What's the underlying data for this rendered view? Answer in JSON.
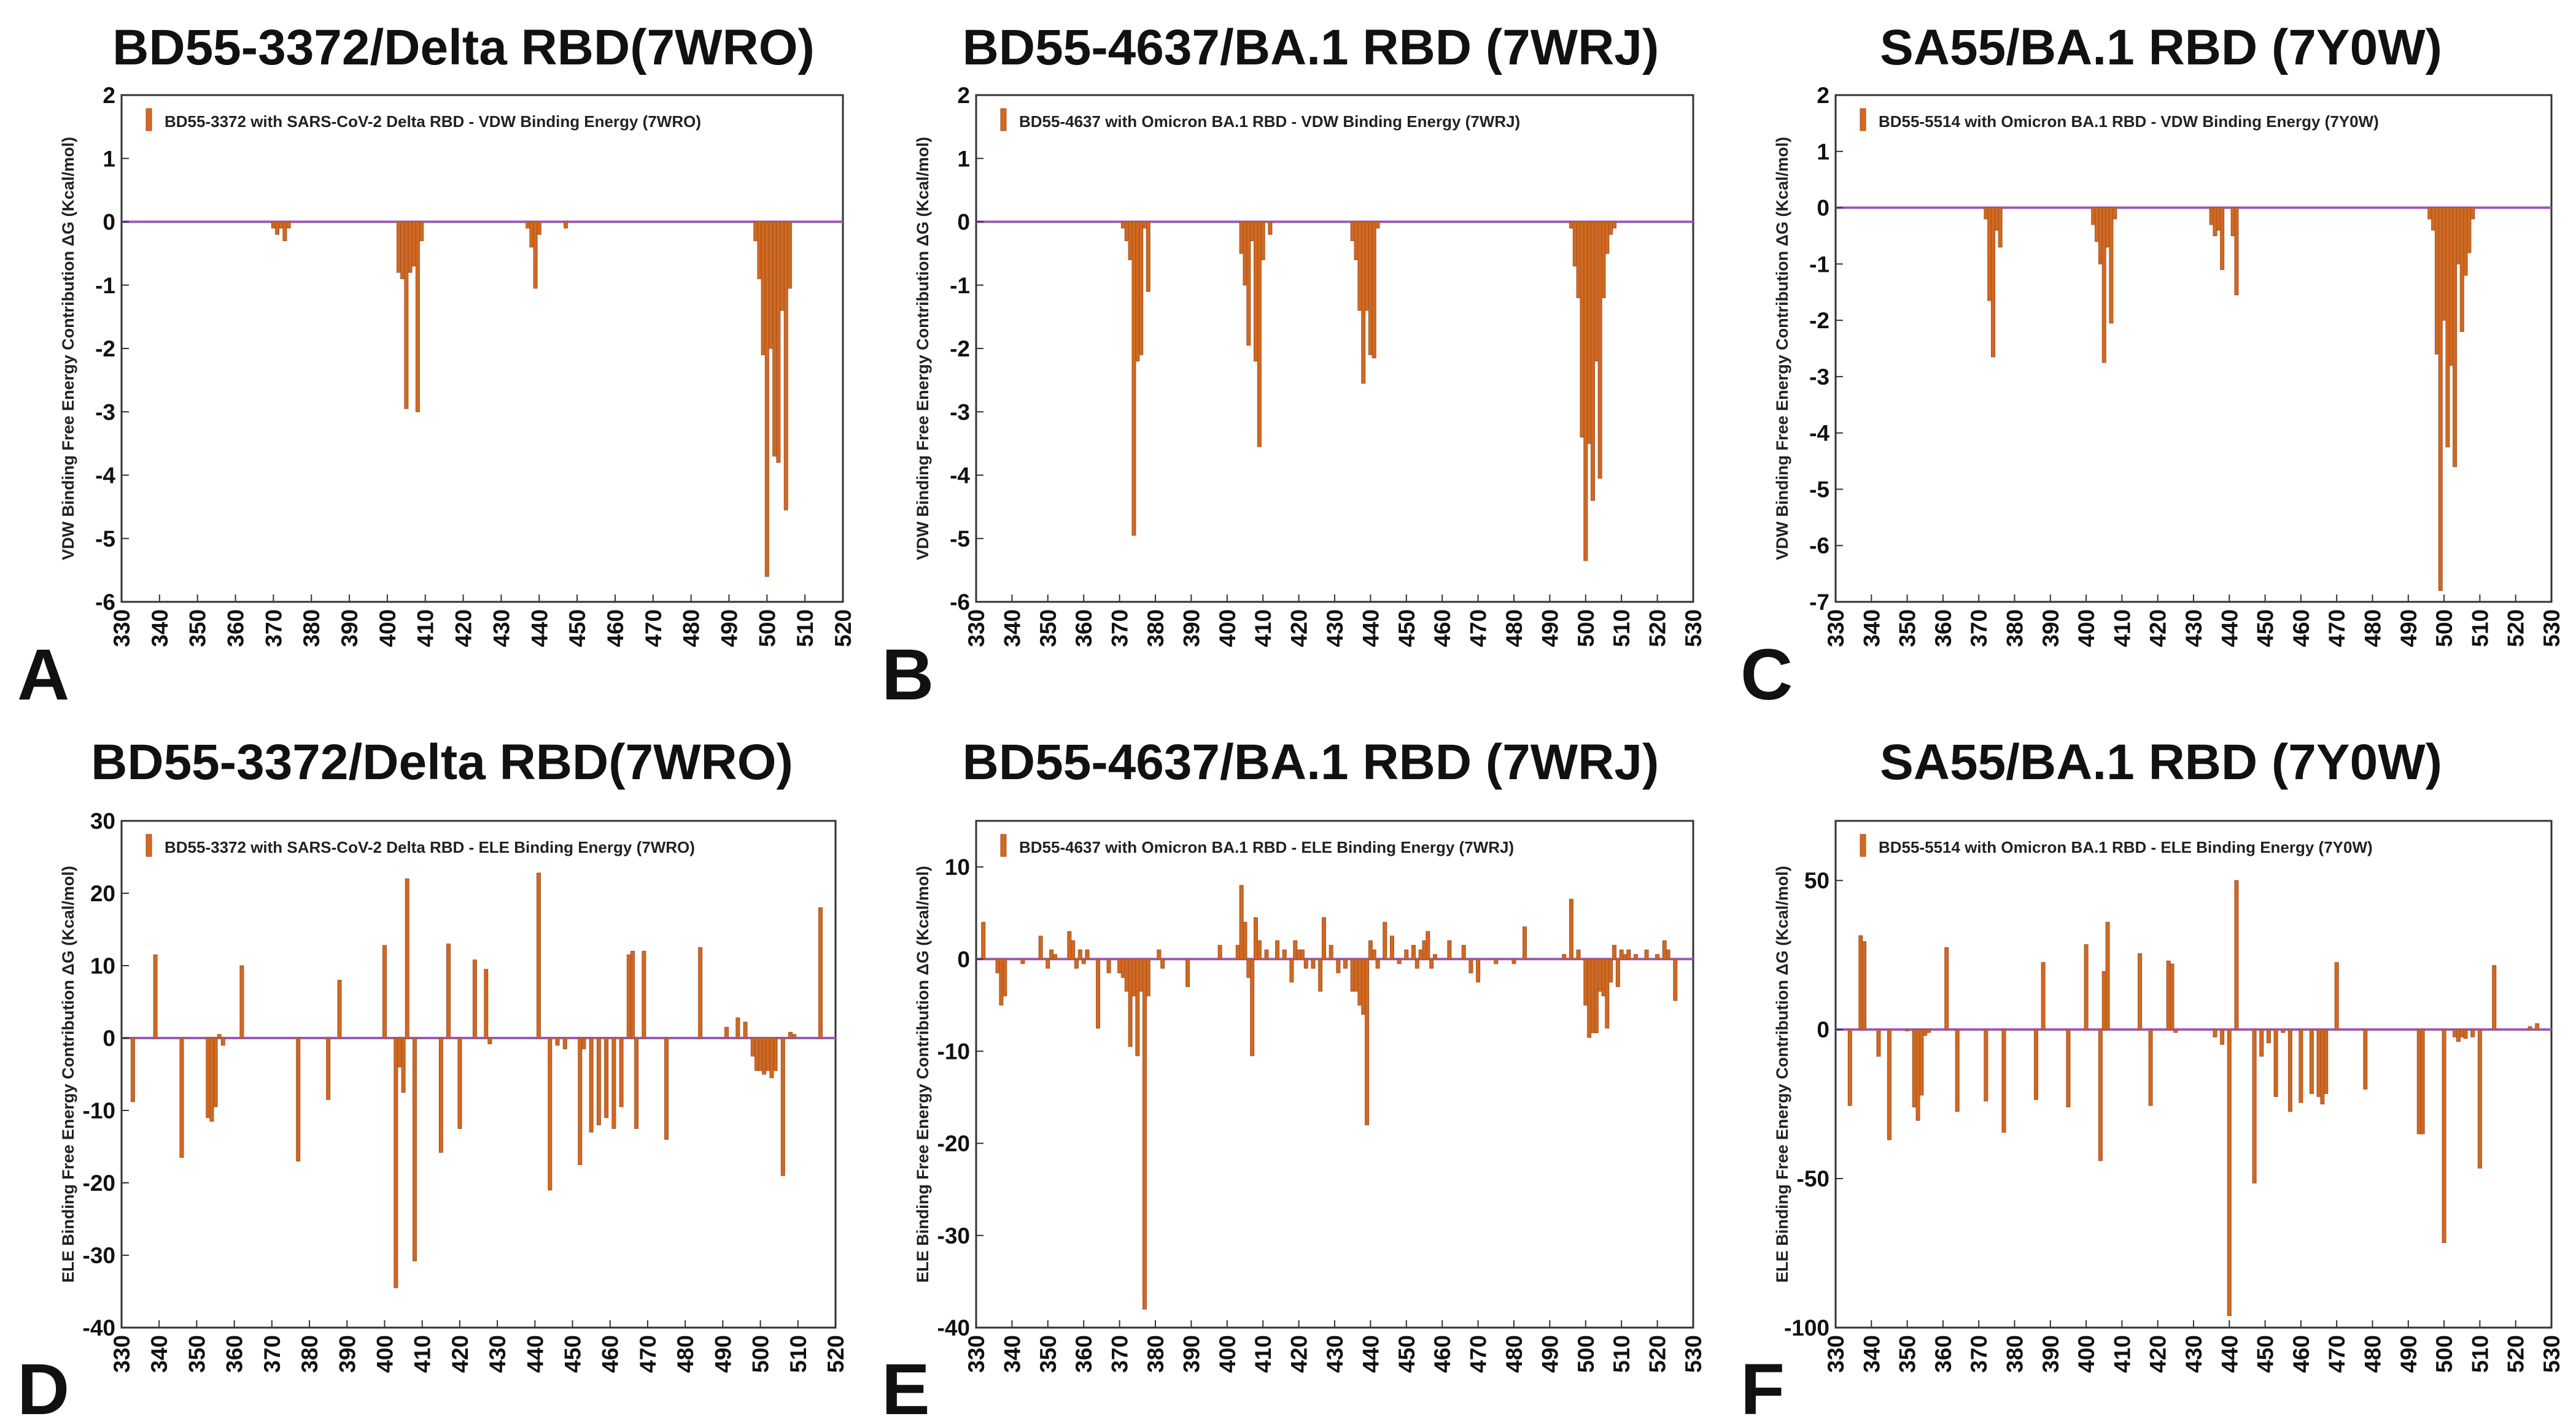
{
  "colors": {
    "bar": "#d2691e",
    "bar_edge": "#a0522d",
    "zero_line": "#9b59b6",
    "axis": "#333333"
  },
  "chart_data": [
    {
      "panel": "A",
      "type": "bar",
      "title": "BD55-3372/Delta RBD(7WRO)",
      "legend": "BD55-3372 with SARS-CoV-2 Delta RBD -  VDW Binding Energy (7WRO)",
      "ylabel": "VDW Binding Free Energy Contribution    ΔG (Kcal/mol)",
      "xlim": [
        330,
        520
      ],
      "xticks": [
        330,
        340,
        350,
        360,
        370,
        380,
        390,
        400,
        410,
        420,
        430,
        440,
        450,
        460,
        470,
        480,
        490,
        500,
        510,
        520
      ],
      "ylim": [
        -6,
        2
      ],
      "yticks": [
        -6,
        -5,
        -4,
        -3,
        -2,
        -1,
        0,
        1,
        2
      ],
      "x": [
        370,
        371,
        372,
        373,
        374,
        403,
        404,
        405,
        406,
        407,
        408,
        409,
        437,
        438,
        439,
        440,
        447,
        497,
        498,
        499,
        500,
        501,
        502,
        503,
        504,
        505,
        506
      ],
      "values": [
        -0.1,
        -0.2,
        -0.1,
        -0.3,
        -0.1,
        -0.8,
        -0.9,
        -2.95,
        -0.8,
        -0.7,
        -3.0,
        -0.3,
        -0.1,
        -0.4,
        -1.05,
        -0.2,
        -0.1,
        -0.3,
        -0.9,
        -2.1,
        -5.6,
        -2.0,
        -3.7,
        -3.8,
        -1.4,
        -4.55,
        -1.05
      ]
    },
    {
      "panel": "B",
      "type": "bar",
      "title": "BD55-4637/BA.1 RBD  (7WRJ)",
      "legend": "BD55-4637 with Omicron BA.1 RBD -  VDW Binding Energy (7WRJ)",
      "ylabel": "VDW Binding Free Energy Contribution    ΔG (Kcal/mol)",
      "xlim": [
        330,
        530
      ],
      "xticks": [
        330,
        340,
        350,
        360,
        370,
        380,
        390,
        400,
        410,
        420,
        430,
        440,
        450,
        460,
        470,
        480,
        490,
        500,
        510,
        520,
        530
      ],
      "ylim": [
        -6,
        2
      ],
      "yticks": [
        -6,
        -5,
        -4,
        -3,
        -2,
        -1,
        0,
        1,
        2
      ],
      "x": [
        371,
        372,
        373,
        374,
        375,
        376,
        377,
        378,
        404,
        405,
        406,
        407,
        408,
        409,
        410,
        412,
        435,
        436,
        437,
        438,
        439,
        440,
        441,
        442,
        496,
        497,
        498,
        499,
        500,
        501,
        502,
        503,
        504,
        505,
        506,
        507,
        508
      ],
      "values": [
        -0.1,
        -0.3,
        -0.6,
        -4.95,
        -2.2,
        -2.1,
        -0.1,
        -1.1,
        -0.5,
        -1.0,
        -1.95,
        -0.3,
        -2.2,
        -3.55,
        -0.6,
        -0.2,
        -0.3,
        -0.6,
        -1.4,
        -2.55,
        -1.4,
        -2.1,
        -2.15,
        -0.1,
        -0.1,
        -0.7,
        -1.2,
        -3.4,
        -5.35,
        -3.5,
        -4.4,
        -2.2,
        -4.05,
        -1.2,
        -0.5,
        -0.2,
        -0.1
      ]
    },
    {
      "panel": "C",
      "type": "bar",
      "title": "SA55/BA.1 RBD (7Y0W)",
      "legend": "BD55-5514 with Omicron BA.1 RBD -  VDW Binding Energy (7Y0W)",
      "ylabel": "VDW Binding Free Energy Contribution    ΔG (Kcal/mol)",
      "xlim": [
        330,
        530
      ],
      "xticks": [
        330,
        340,
        350,
        360,
        370,
        380,
        390,
        400,
        410,
        420,
        430,
        440,
        450,
        460,
        470,
        480,
        490,
        500,
        510,
        520,
        530
      ],
      "ylim": [
        -7,
        2
      ],
      "yticks": [
        -7,
        -6,
        -5,
        -4,
        -3,
        -2,
        -1,
        0,
        1,
        2
      ],
      "x": [
        372,
        373,
        374,
        375,
        376,
        402,
        403,
        404,
        405,
        406,
        407,
        408,
        435,
        436,
        437,
        438,
        441,
        442,
        496,
        497,
        498,
        499,
        500,
        501,
        502,
        503,
        504,
        505,
        506,
        507,
        508
      ],
      "values": [
        -0.2,
        -1.65,
        -2.65,
        -0.4,
        -0.7,
        -0.3,
        -0.6,
        -1.0,
        -2.75,
        -0.7,
        -2.05,
        -0.2,
        -0.3,
        -0.5,
        -0.4,
        -1.1,
        -0.5,
        -1.55,
        -0.2,
        -0.4,
        -2.6,
        -6.8,
        -2.0,
        -4.25,
        -2.8,
        -4.6,
        -1.0,
        -2.2,
        -1.2,
        -0.8,
        -0.2
      ]
    },
    {
      "panel": "D",
      "type": "bar",
      "title": "BD55-3372/Delta RBD(7WRO)",
      "legend": "BD55-3372 with SARS-CoV-2 Delta RBD -  ELE Binding Energy (7WRO)",
      "ylabel": "ELE Binding Free Energy Contribution    ΔG (Kcal/mol)",
      "xlim": [
        330,
        520
      ],
      "xticks": [
        330,
        340,
        350,
        360,
        370,
        380,
        390,
        400,
        410,
        420,
        430,
        440,
        450,
        460,
        470,
        480,
        490,
        500,
        510,
        520
      ],
      "ylim": [
        -40,
        30
      ],
      "yticks": [
        -40,
        -30,
        -20,
        -10,
        0,
        10,
        20,
        30
      ],
      "x": [
        333,
        339,
        346,
        353,
        354,
        355,
        356,
        357,
        362,
        377,
        385,
        388,
        400,
        403,
        404,
        405,
        406,
        408,
        415,
        417,
        420,
        424,
        427,
        428,
        441,
        444,
        446,
        448,
        452,
        453,
        455,
        457,
        459,
        461,
        463,
        465,
        466,
        467,
        469,
        475,
        484,
        491,
        494,
        496,
        498,
        499,
        500,
        501,
        502,
        503,
        504,
        506,
        508,
        509,
        516
      ],
      "values": [
        -8.8,
        11.5,
        -16.5,
        -11.0,
        -11.5,
        -9.5,
        0.5,
        -1.0,
        10.0,
        -17.0,
        -8.5,
        8.0,
        12.8,
        -34.5,
        -4.0,
        -7.5,
        22.0,
        -30.8,
        -15.8,
        13.0,
        -12.5,
        10.8,
        9.5,
        -0.8,
        22.8,
        -21.0,
        -1.0,
        -1.5,
        -17.5,
        -1.5,
        -13.0,
        -12.0,
        -11.0,
        -12.5,
        -9.5,
        11.5,
        12.0,
        -12.5,
        12.0,
        -14.0,
        12.5,
        1.5,
        2.8,
        2.2,
        -2.5,
        -4.5,
        -4.5,
        -5.0,
        -4.5,
        -5.5,
        -4.5,
        -19.0,
        0.8,
        0.5,
        18.0
      ]
    },
    {
      "panel": "E",
      "type": "bar",
      "title": "BD55-4637/BA.1 RBD  (7WRJ)",
      "legend": "BD55-4637 with Omicron BA.1 RBD -  ELE Binding Energy (7WRJ)",
      "ylabel": "ELE Binding Free Energy Contribution    ΔG (Kcal/mol)",
      "xlim": [
        330,
        530
      ],
      "xticks": [
        330,
        340,
        350,
        360,
        370,
        380,
        390,
        400,
        410,
        420,
        430,
        440,
        450,
        460,
        470,
        480,
        490,
        500,
        510,
        520,
        530
      ],
      "ylim": [
        -40,
        15
      ],
      "yticks": [
        -40,
        -30,
        -20,
        -10,
        0,
        10
      ],
      "x": [
        332,
        336,
        337,
        338,
        343,
        348,
        350,
        351,
        352,
        356,
        357,
        358,
        359,
        360,
        361,
        364,
        367,
        370,
        371,
        372,
        373,
        374,
        375,
        376,
        377,
        378,
        381,
        382,
        389,
        398,
        403,
        404,
        405,
        406,
        407,
        408,
        409,
        411,
        414,
        416,
        418,
        419,
        420,
        421,
        422,
        424,
        426,
        427,
        429,
        431,
        433,
        435,
        436,
        437,
        438,
        439,
        440,
        441,
        442,
        444,
        446,
        448,
        450,
        452,
        453,
        454,
        455,
        456,
        457,
        458,
        462,
        466,
        468,
        470,
        475,
        480,
        483,
        494,
        496,
        498,
        500,
        501,
        502,
        503,
        504,
        505,
        506,
        507,
        508,
        509,
        510,
        511,
        512,
        514,
        517,
        520,
        522,
        523,
        525
      ],
      "values": [
        4.0,
        -1.5,
        -5.0,
        -4.0,
        -0.5,
        2.5,
        -1.0,
        1.0,
        0.5,
        3.0,
        2.0,
        -1.0,
        1.0,
        -0.5,
        1.0,
        -7.5,
        -1.5,
        -1.5,
        -2.0,
        -3.5,
        -9.5,
        -4.0,
        -10.5,
        -3.5,
        -38.0,
        -4.0,
        1.0,
        -1.0,
        -3.0,
        1.5,
        1.5,
        8.0,
        4.0,
        -2.0,
        -10.5,
        4.5,
        2.0,
        1.0,
        2.0,
        1.0,
        -2.5,
        2.0,
        1.0,
        1.0,
        -1.0,
        -1.0,
        -3.5,
        4.5,
        1.5,
        -1.5,
        -1.0,
        -3.5,
        -3.5,
        -5.0,
        -6.0,
        -18.0,
        2.0,
        1.0,
        -1.0,
        4.0,
        2.5,
        -0.5,
        1.0,
        1.5,
        -1.0,
        1.0,
        2.0,
        3.0,
        -1.0,
        0.5,
        2.0,
        1.5,
        -1.5,
        -2.5,
        -0.5,
        -0.5,
        3.5,
        0.5,
        6.5,
        1.0,
        -5.0,
        -8.5,
        -8.0,
        -8.0,
        -3.5,
        -4.0,
        -7.5,
        -2.5,
        1.5,
        -3.0,
        1.0,
        0.5,
        1.0,
        0.5,
        1.0,
        0.5,
        2.0,
        1.0,
        -4.5
      ]
    },
    {
      "panel": "F",
      "type": "bar",
      "title": "SA55/BA.1 RBD (7Y0W)",
      "legend": "BD55-5514 with Omicron BA.1 RBD -  ELE Binding Energy (7Y0W)",
      "ylabel": "ELE Binding Free Energy Contribution    ΔG (Kcal/mol)",
      "xlim": [
        330,
        530
      ],
      "xticks": [
        330,
        340,
        350,
        360,
        370,
        380,
        390,
        400,
        410,
        420,
        430,
        440,
        450,
        460,
        470,
        480,
        490,
        500,
        510,
        520,
        530
      ],
      "ylim": [
        -100,
        70
      ],
      "yticks": [
        -100,
        -50,
        0,
        50
      ],
      "x": [
        334,
        337,
        338,
        342,
        345,
        350,
        352,
        353,
        354,
        355,
        356,
        361,
        364,
        372,
        377,
        386,
        388,
        395,
        400,
        404,
        405,
        406,
        415,
        418,
        423,
        424,
        425,
        436,
        438,
        440,
        442,
        447,
        449,
        451,
        453,
        455,
        457,
        460,
        463,
        465,
        466,
        467,
        470,
        478,
        493,
        494,
        500,
        503,
        504,
        505,
        506,
        508,
        510,
        514,
        524,
        526
      ],
      "values": [
        -25.5,
        31.5,
        29.5,
        -9.0,
        -37.0,
        -0.5,
        -26.0,
        -30.5,
        -22.0,
        -2.0,
        -1.0,
        27.5,
        -27.5,
        -24.0,
        -34.5,
        -23.5,
        22.5,
        -26.0,
        28.5,
        -44.0,
        19.5,
        36.0,
        25.5,
        -25.5,
        23.0,
        22.0,
        -1.0,
        -2.5,
        -5.0,
        -96.0,
        50.0,
        -51.5,
        -9.0,
        -4.5,
        -22.5,
        -1.0,
        -27.5,
        -24.5,
        -21.5,
        -22.5,
        -25.0,
        -21.5,
        22.5,
        -20.0,
        -35.0,
        -35.0,
        -71.5,
        -2.5,
        -4.0,
        -2.5,
        -3.0,
        -2.5,
        -46.5,
        21.5,
        1.0,
        2.0
      ]
    }
  ]
}
